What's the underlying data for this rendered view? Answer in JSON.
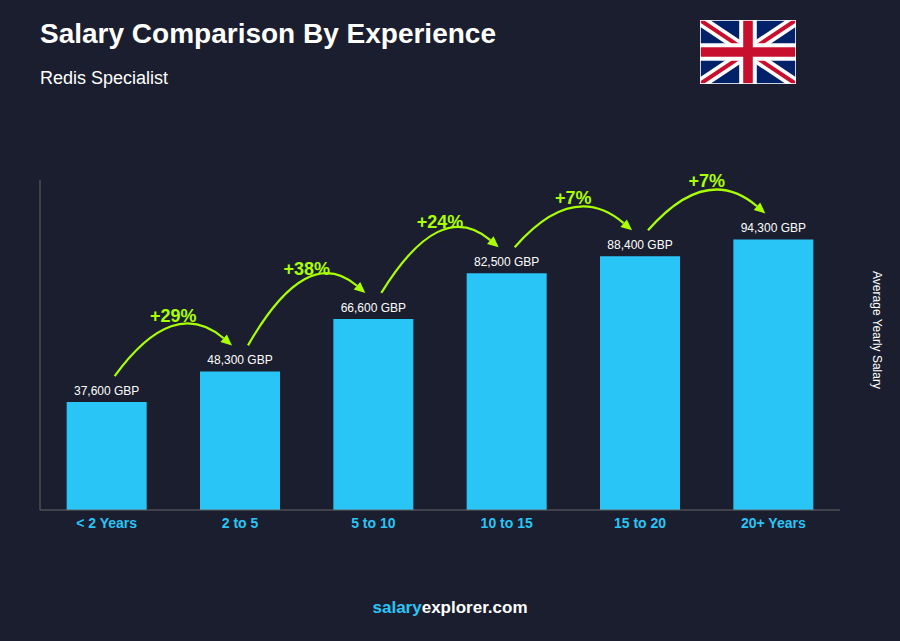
{
  "chart_data": {
    "type": "bar",
    "title": "Salary Comparison By Experience",
    "subtitle": "Redis Specialist",
    "y_label": "Average Yearly Salary",
    "categories": [
      "< 2 Years",
      "2 to 5",
      "5 to 10",
      "10 to 15",
      "15 to 20",
      "20+ Years"
    ],
    "values": [
      37600,
      48300,
      66600,
      82500,
      88400,
      94300
    ],
    "value_labels": [
      "37,600 GBP",
      "48,300 GBP",
      "66,600 GBP",
      "82,500 GBP",
      "88,400 GBP",
      "94,300 GBP"
    ],
    "data_labels": true,
    "annotations": [
      "+29%",
      "+38%",
      "+24%",
      "+7%",
      "+7%"
    ],
    "watermark": [
      "salary",
      "explorer.com"
    ],
    "color": "#29C5F6",
    "ylim": [
      0,
      115000
    ],
    "yticks": [],
    "tick_labels": "x",
    "grid": false
  }
}
